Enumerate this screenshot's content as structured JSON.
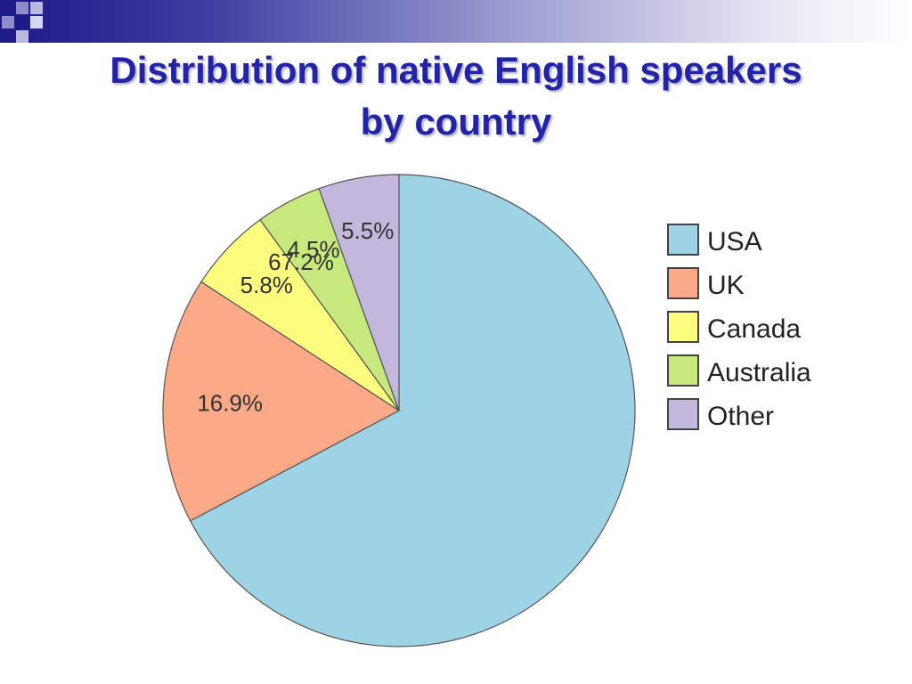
{
  "slide": {
    "title_line1": "Distribution of native English speakers",
    "title_line2": "by country"
  },
  "colors": {
    "title": "#2323a8",
    "band_dark": "#1c1a86"
  },
  "chart_data": {
    "type": "pie",
    "title": "Distribution of native English speakers by country",
    "categories": [
      "USA",
      "UK",
      "Canada",
      "Australia",
      "Other"
    ],
    "values": [
      67.2,
      16.9,
      5.8,
      4.5,
      5.5
    ],
    "labels": [
      "67.2%",
      "16.9%",
      "5.8%",
      "4.5%",
      "5.5%"
    ],
    "colors": [
      "#9dd3e4",
      "#fba986",
      "#fcfc7e",
      "#c6e87c",
      "#c4b7dc"
    ],
    "start": "12 o'clock",
    "direction": "clockwise",
    "legend_position": "right"
  }
}
